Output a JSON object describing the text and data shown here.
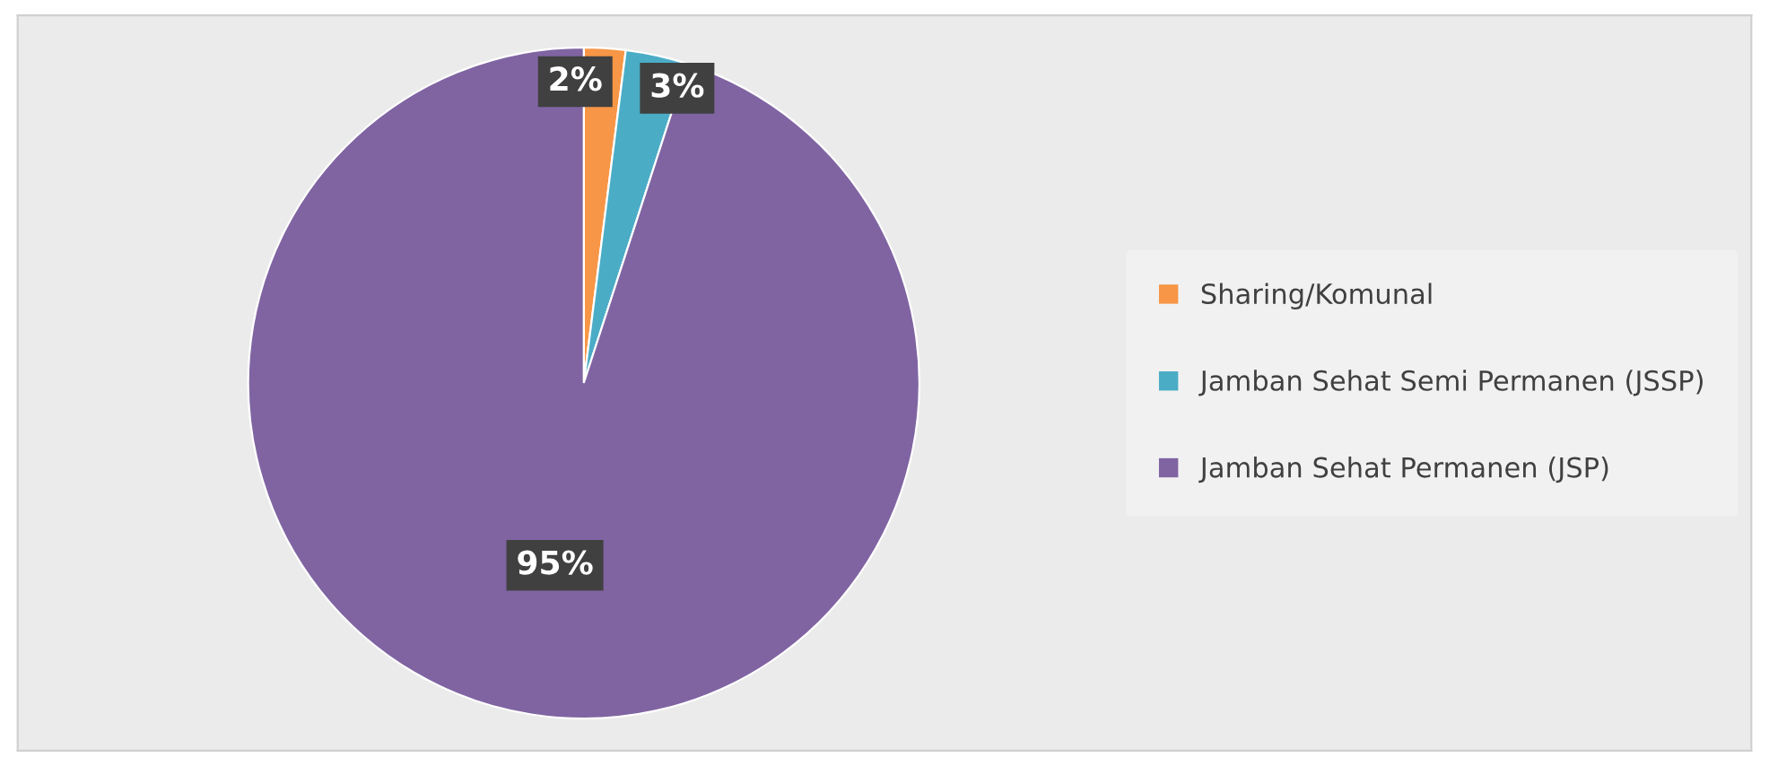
{
  "chart_data": {
    "type": "pie",
    "categories": [
      "Sharing/Komunal",
      "Jamban Sehat Semi Permanen (JSSP)",
      "Jamban Sehat Permanen (JSP)"
    ],
    "values": [
      2,
      3,
      95
    ],
    "colors": [
      "#f79646",
      "#4bacc6",
      "#8064a2"
    ],
    "value_labels": [
      "2%",
      "3%",
      "95%"
    ],
    "legend": "right"
  }
}
